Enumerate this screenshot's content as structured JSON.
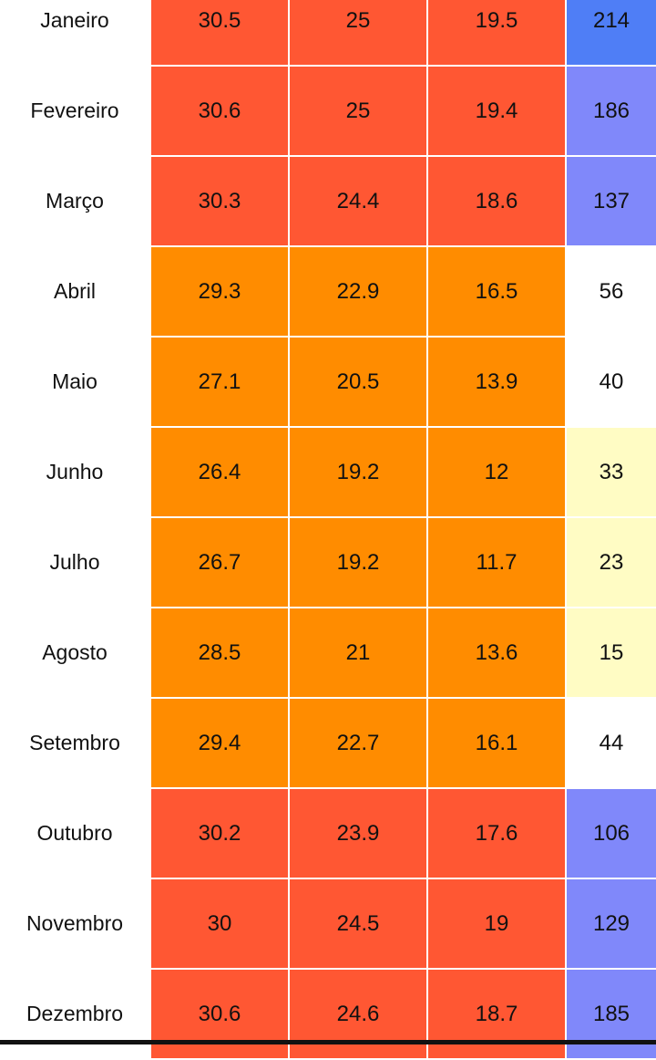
{
  "rows": [
    {
      "month": "Janeiro",
      "max": "30.5",
      "avg": "25",
      "min": "19.5",
      "rain": "214"
    },
    {
      "month": "Fevereiro",
      "max": "30.6",
      "avg": "25",
      "min": "19.4",
      "rain": "186"
    },
    {
      "month": "Março",
      "max": "30.3",
      "avg": "24.4",
      "min": "18.6",
      "rain": "137"
    },
    {
      "month": "Abril",
      "max": "29.3",
      "avg": "22.9",
      "min": "16.5",
      "rain": "56"
    },
    {
      "month": "Maio",
      "max": "27.1",
      "avg": "20.5",
      "min": "13.9",
      "rain": "40"
    },
    {
      "month": "Junho",
      "max": "26.4",
      "avg": "19.2",
      "min": "12",
      "rain": "33"
    },
    {
      "month": "Julho",
      "max": "26.7",
      "avg": "19.2",
      "min": "11.7",
      "rain": "23"
    },
    {
      "month": "Agosto",
      "max": "28.5",
      "avg": "21",
      "min": "13.6",
      "rain": "15"
    },
    {
      "month": "Setembro",
      "max": "29.4",
      "avg": "22.7",
      "min": "16.1",
      "rain": "44"
    },
    {
      "month": "Outubro",
      "max": "30.2",
      "avg": "23.9",
      "min": "17.6",
      "rain": "106"
    },
    {
      "month": "Novembro",
      "max": "30",
      "avg": "24.5",
      "min": "19",
      "rain": "129"
    },
    {
      "month": "Dezembro",
      "max": "30.6",
      "avg": "24.6",
      "min": "18.7",
      "rain": "185"
    }
  ],
  "colors": {
    "temp_hot": "#ff5733",
    "temp_warm": "#ff8c00",
    "rain_very_high": "#4f7ef6",
    "rain_high": "#8088fa",
    "rain_mid": "#ffffff",
    "rain_low": "#fffcc4"
  }
}
